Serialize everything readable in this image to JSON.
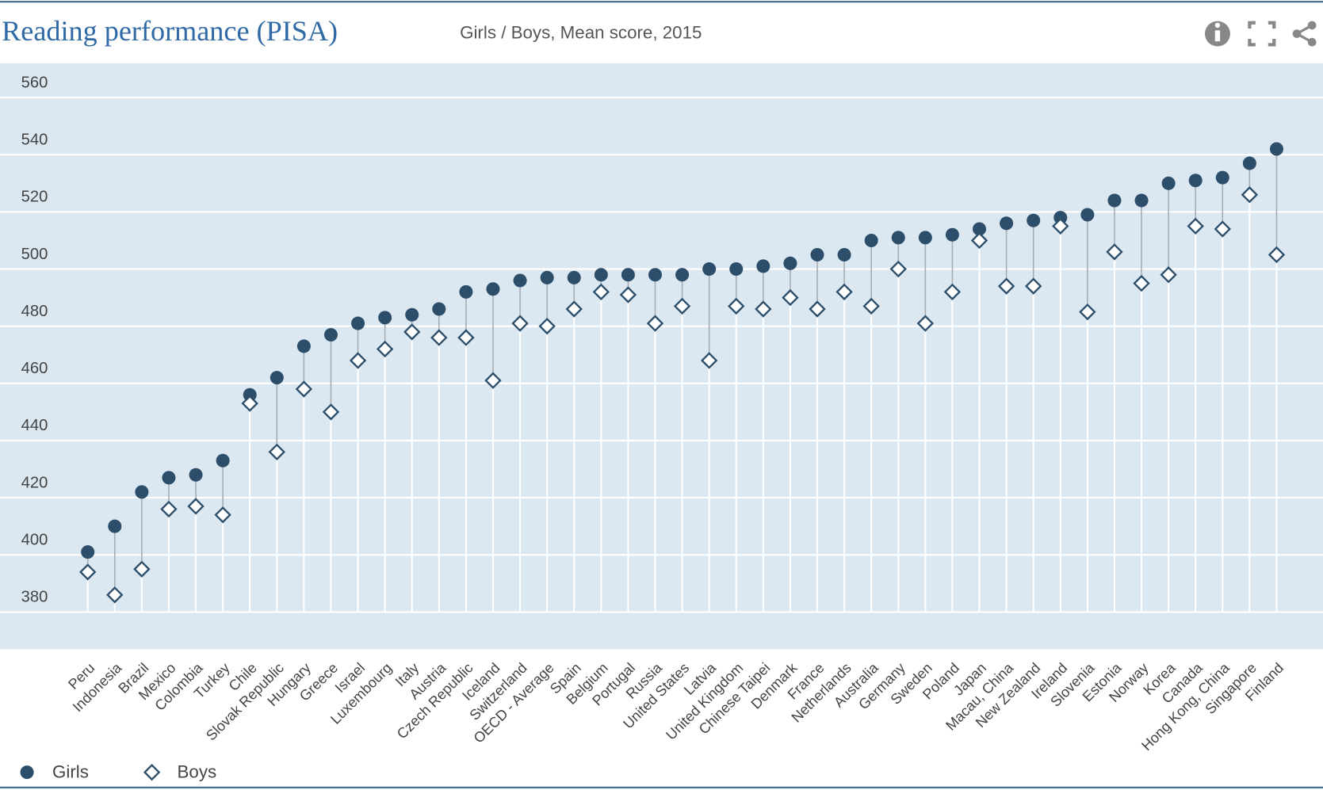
{
  "chart_data": {
    "type": "dot-pair",
    "title": "Reading performance (PISA)",
    "subtitle": "Girls / Boys, Mean score, 2015",
    "categories": [
      "Peru",
      "Indonesia",
      "Brazil",
      "Mexico",
      "Colombia",
      "Turkey",
      "Chile",
      "Slovak Republic",
      "Hungary",
      "Greece",
      "Israel",
      "Luxembourg",
      "Italy",
      "Austria",
      "Czech Republic",
      "Iceland",
      "Switzerland",
      "OECD - Average",
      "Spain",
      "Belgium",
      "Portugal",
      "Russia",
      "United States",
      "Latvia",
      "United Kingdom",
      "Chinese Taipei",
      "Denmark",
      "France",
      "Netherlands",
      "Australia",
      "Germany",
      "Sweden",
      "Poland",
      "Japan",
      "Macau, China",
      "New Zealand",
      "Ireland",
      "Slovenia",
      "Estonia",
      "Norway",
      "Korea",
      "Canada",
      "Hong Kong, China",
      "Singapore",
      "Finland"
    ],
    "series": [
      {
        "name": "Girls",
        "color": "#2c4e6a",
        "marker": "circle",
        "values": [
          401,
          410,
          422,
          427,
          428,
          433,
          456,
          462,
          473,
          477,
          481,
          483,
          484,
          486,
          492,
          493,
          496,
          497,
          497,
          498,
          498,
          498,
          498,
          500,
          500,
          501,
          502,
          505,
          505,
          510,
          511,
          511,
          512,
          514,
          516,
          517,
          518,
          519,
          524,
          524,
          530,
          531,
          532,
          537,
          542
        ]
      },
      {
        "name": "Boys",
        "color": "#2c4e6a",
        "marker": "diamond",
        "values": [
          394,
          386,
          395,
          416,
          417,
          414,
          453,
          436,
          458,
          450,
          468,
          472,
          478,
          476,
          476,
          461,
          481,
          480,
          486,
          492,
          491,
          481,
          487,
          468,
          487,
          486,
          490,
          486,
          492,
          487,
          500,
          481,
          492,
          510,
          494,
          494,
          515,
          485,
          506,
          495,
          498,
          515,
          514,
          526,
          505
        ]
      }
    ],
    "ylim": [
      367,
      572
    ],
    "yticks": [
      380,
      400,
      420,
      440,
      460,
      480,
      500,
      520,
      540,
      560
    ],
    "grid": true,
    "legend": "bottom-left"
  }
}
